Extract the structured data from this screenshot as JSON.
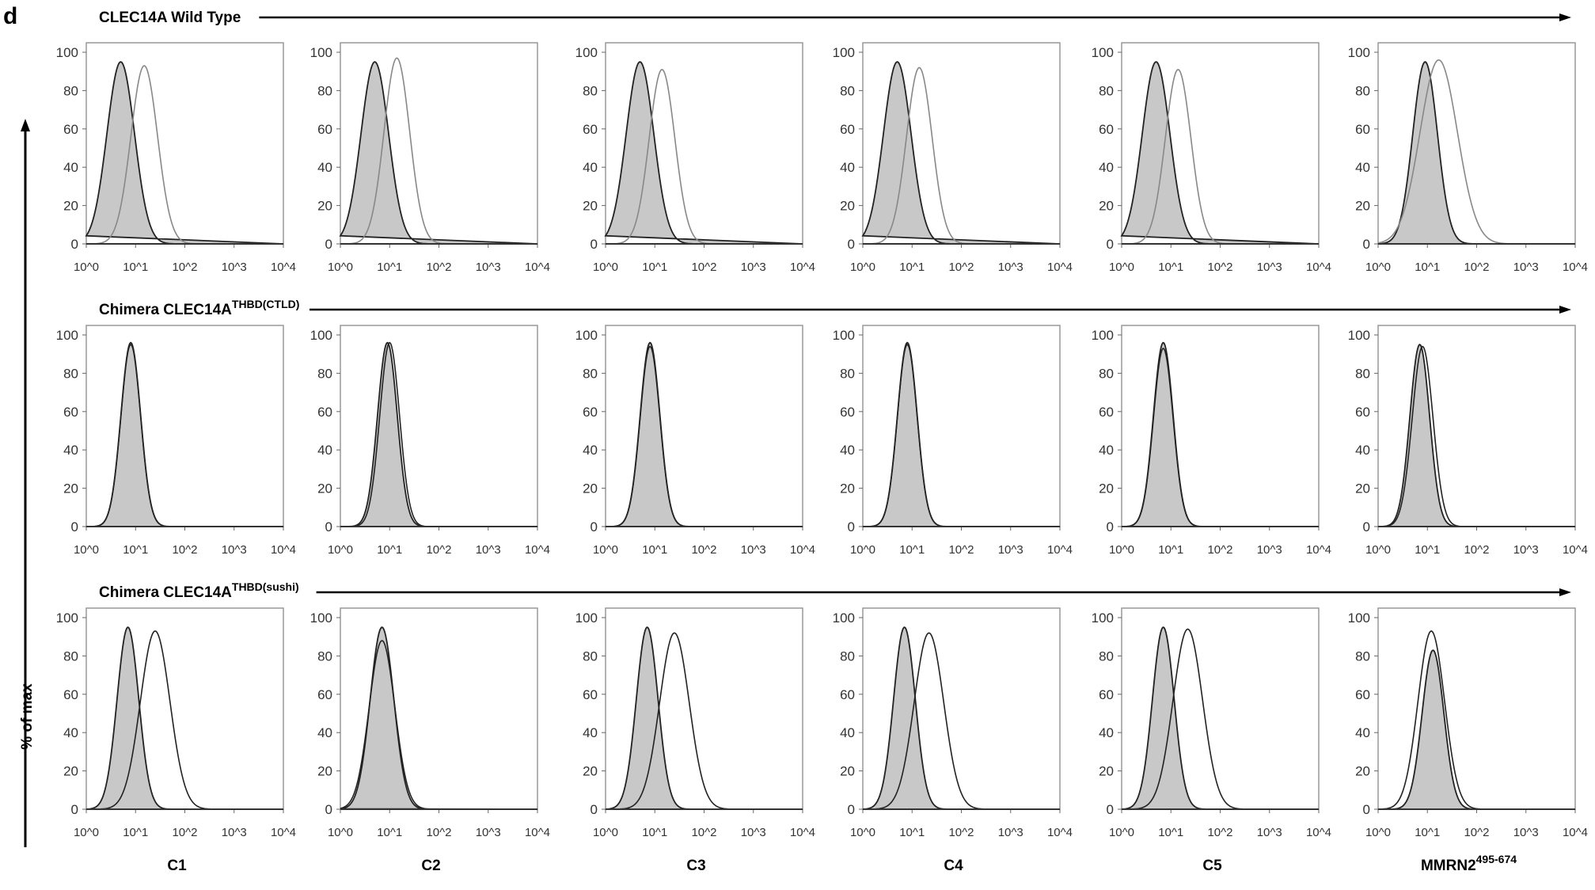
{
  "panel_letter": "d",
  "ylabel": "% of max",
  "rows": [
    {
      "title": "CLEC14A Wild Type",
      "title_sup": ""
    },
    {
      "title": "Chimera CLEC14A",
      "title_sup": "THBD(CTLD)"
    },
    {
      "title": "Chimera CLEC14A",
      "title_sup": "THBD(sushi)"
    }
  ],
  "columns": [
    {
      "label": "C1",
      "sup": ""
    },
    {
      "label": "C2",
      "sup": ""
    },
    {
      "label": "C3",
      "sup": ""
    },
    {
      "label": "C4",
      "sup": ""
    },
    {
      "label": "C5",
      "sup": ""
    },
    {
      "label": "MMRN2",
      "sup": "495-674"
    }
  ],
  "chart_data": {
    "type": "histogram-grid",
    "x_scale": "log",
    "xlim": [
      1,
      10000
    ],
    "x_ticks": [
      "10^0",
      "10^1",
      "10^2",
      "10^3",
      "10^4"
    ],
    "ylim": [
      0,
      100
    ],
    "y_ticks": [
      0,
      20,
      40,
      60,
      80,
      100
    ],
    "ylabel": "% of max",
    "colors": {
      "isotype_fill": "#c8c8c8",
      "outline": "#222222",
      "wt_sample_line": "#888888"
    },
    "note_fields": "each histogram: peak fluorescence (data units), peak height (% of max), spread (decades)",
    "histograms": [
      [
        {
          "filled": {
            "peak": 5,
            "height": 95,
            "spread": 0.28
          },
          "open": {
            "peak": 15,
            "height": 93,
            "spread": 0.27
          }
        },
        {
          "filled": {
            "peak": 5,
            "height": 95,
            "spread": 0.28
          },
          "open": {
            "peak": 14,
            "height": 97,
            "spread": 0.26
          }
        },
        {
          "filled": {
            "peak": 5,
            "height": 95,
            "spread": 0.28
          },
          "open": {
            "peak": 14,
            "height": 91,
            "spread": 0.26
          }
        },
        {
          "filled": {
            "peak": 5,
            "height": 95,
            "spread": 0.28
          },
          "open": {
            "peak": 14,
            "height": 92,
            "spread": 0.26
          }
        },
        {
          "filled": {
            "peak": 5,
            "height": 95,
            "spread": 0.28
          },
          "open": {
            "peak": 14,
            "height": 91,
            "spread": 0.26
          }
        },
        {
          "filled": {
            "peak": 9,
            "height": 95,
            "spread": 0.25
          },
          "open": {
            "peak": 17,
            "height": 96,
            "spread": 0.38
          }
        }
      ],
      [
        {
          "filled": {
            "peak": 8,
            "height": 96,
            "spread": 0.2
          },
          "open": {
            "peak": 8,
            "height": 95,
            "spread": 0.2
          }
        },
        {
          "filled": {
            "peak": 9,
            "height": 96,
            "spread": 0.2
          },
          "open": {
            "peak": 10,
            "height": 96,
            "spread": 0.2
          }
        },
        {
          "filled": {
            "peak": 8,
            "height": 96,
            "spread": 0.2
          },
          "open": {
            "peak": 8,
            "height": 94,
            "spread": 0.2
          }
        },
        {
          "filled": {
            "peak": 8,
            "height": 96,
            "spread": 0.2
          },
          "open": {
            "peak": 8,
            "height": 95,
            "spread": 0.2
          }
        },
        {
          "filled": {
            "peak": 7,
            "height": 96,
            "spread": 0.2
          },
          "open": {
            "peak": 7,
            "height": 93,
            "spread": 0.2
          }
        },
        {
          "filled": {
            "peak": 7,
            "height": 95,
            "spread": 0.2
          },
          "open": {
            "peak": 8,
            "height": 94,
            "spread": 0.21
          }
        }
      ],
      [
        {
          "filled": {
            "peak": 7,
            "height": 95,
            "spread": 0.22
          },
          "open": {
            "peak": 25,
            "height": 93,
            "spread": 0.3
          }
        },
        {
          "filled": {
            "peak": 7,
            "height": 95,
            "spread": 0.24
          },
          "open": {
            "peak": 7,
            "height": 88,
            "spread": 0.26
          }
        },
        {
          "filled": {
            "peak": 7,
            "height": 95,
            "spread": 0.22
          },
          "open": {
            "peak": 25,
            "height": 92,
            "spread": 0.3
          }
        },
        {
          "filled": {
            "peak": 7,
            "height": 95,
            "spread": 0.22
          },
          "open": {
            "peak": 22,
            "height": 92,
            "spread": 0.3
          }
        },
        {
          "filled": {
            "peak": 7,
            "height": 95,
            "spread": 0.22
          },
          "open": {
            "peak": 22,
            "height": 94,
            "spread": 0.3
          }
        },
        {
          "filled": {
            "peak": 13,
            "height": 83,
            "spread": 0.22
          },
          "open": {
            "peak": 12,
            "height": 93,
            "spread": 0.27
          }
        }
      ]
    ]
  }
}
